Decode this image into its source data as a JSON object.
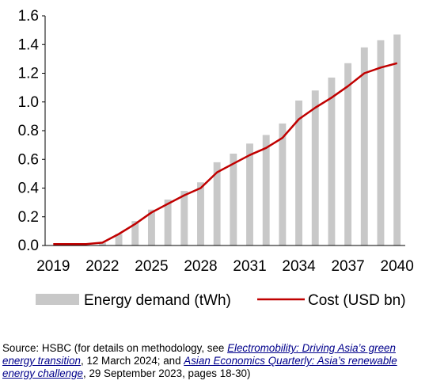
{
  "chart_data": {
    "type": "bar",
    "x": [
      2019,
      2020,
      2021,
      2022,
      2023,
      2024,
      2025,
      2026,
      2027,
      2028,
      2029,
      2030,
      2031,
      2032,
      2033,
      2034,
      2035,
      2036,
      2037,
      2038,
      2039,
      2040
    ],
    "x_ticks": [
      "2019",
      "2022",
      "2025",
      "2028",
      "2031",
      "2034",
      "2037",
      "2040"
    ],
    "y_ticks": [
      "0.0",
      "0.2",
      "0.4",
      "0.6",
      "0.8",
      "1.0",
      "1.2",
      "1.4",
      "1.6"
    ],
    "ylim": [
      0,
      1.6
    ],
    "grid": false,
    "legend_position": "bottom",
    "series": [
      {
        "name": "Energy demand (tWh)",
        "kind": "bar",
        "color": "#c8c8c8",
        "values": [
          0.0,
          0.0,
          0.0,
          0.02,
          0.08,
          0.17,
          0.25,
          0.32,
          0.38,
          0.44,
          0.58,
          0.64,
          0.71,
          0.77,
          0.85,
          1.01,
          1.08,
          1.17,
          1.27,
          1.38,
          1.43,
          1.47
        ]
      },
      {
        "name": "Cost (USD bn)",
        "kind": "line",
        "color": "#c00000",
        "values": [
          0.01,
          0.01,
          0.01,
          0.02,
          0.08,
          0.15,
          0.23,
          0.29,
          0.35,
          0.4,
          0.51,
          0.57,
          0.63,
          0.68,
          0.75,
          0.88,
          0.96,
          1.03,
          1.11,
          1.2,
          1.24,
          1.27
        ]
      }
    ]
  },
  "source": {
    "prefix": "Source: HSBC (for details on methodology, see ",
    "link1": "Electromobility: Driving Asia’s green energy transition",
    "middle": ", 12 March 2024; and ",
    "link2": "Asian Economics Quarterly: Asia’s renewable energy challenge",
    "suffix": ", 29 September 2023, pages 18-30)"
  }
}
